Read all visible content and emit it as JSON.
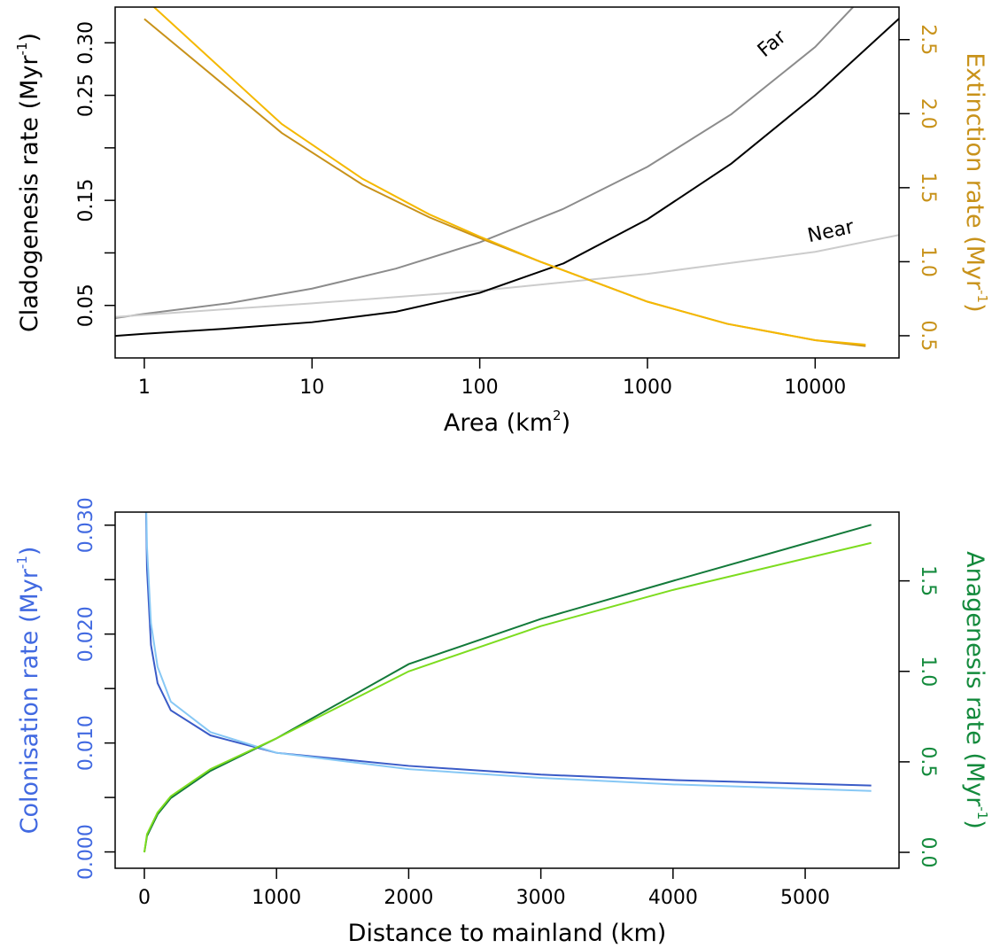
{
  "chart_data": [
    {
      "type": "line",
      "xscale": "log",
      "xlabel": [
        "Area (km",
        "2",
        ")"
      ],
      "ylabel": [
        "Cladogenesis rate (Myr",
        "-1",
        ")"
      ],
      "y2label": [
        "Extinction rate (Myr",
        "-1",
        ")"
      ],
      "ycolor": "#000000",
      "y2color": "#c8921a",
      "xlim": [
        0.67,
        31623
      ],
      "xticks": [
        1,
        10,
        100,
        1000,
        10000
      ],
      "ylim": [
        0,
        0.334
      ],
      "yticks": [
        0.05,
        0.15,
        0.25,
        {
          "value": 0.3,
          "label": "0.30"
        }
      ],
      "yminorticks": [
        0.1,
        0.2
      ],
      "y2lim": [
        0.35,
        2.72
      ],
      "y2ticks": [
        0.5,
        {
          "value": 1,
          "label": "1.0"
        },
        1.5,
        {
          "value": 2,
          "label": "2.0"
        },
        2.5
      ],
      "series": [
        {
          "name": "Far",
          "color": "#8c8c8c",
          "x": [
            0.67,
            1,
            3.16,
            10,
            31.6,
            100,
            316,
            1000,
            3162,
            10000,
            31623
          ],
          "values": [
            0.038,
            0.042,
            0.052,
            0.066,
            0.085,
            0.11,
            0.142,
            0.182,
            0.232,
            0.296,
            0.38
          ]
        },
        {
          "name": "Near",
          "color": "#cccccc",
          "x": [
            0.67,
            1,
            10,
            100,
            1000,
            10000,
            31623
          ],
          "values": [
            0.039,
            0.041,
            0.052,
            0.064,
            0.08,
            0.101,
            0.117
          ]
        },
        {
          "color": "#000000",
          "x": [
            0.67,
            1,
            3.16,
            10,
            31.6,
            100,
            316,
            1000,
            3162,
            10000,
            31623
          ],
          "values": [
            0.021,
            0.023,
            0.028,
            0.034,
            0.044,
            0.062,
            0.09,
            0.132,
            0.185,
            0.25,
            0.323
          ]
        },
        {
          "color": "#c8921a",
          "axis": "y2",
          "x": [
            1,
            6.6,
            20,
            50,
            100,
            230,
            1000,
            3000,
            10000,
            20000
          ],
          "values": [
            2.64,
            1.87,
            1.52,
            1.3,
            1.16,
            1.0,
            0.73,
            0.58,
            0.47,
            0.43
          ]
        },
        {
          "color": "#f5b800",
          "axis": "y2",
          "x": [
            1,
            6.6,
            20,
            50,
            100,
            230,
            1000,
            3000,
            10000,
            20000
          ],
          "values": [
            2.78,
            1.93,
            1.56,
            1.32,
            1.17,
            1.0,
            0.73,
            0.58,
            0.47,
            0.44
          ]
        }
      ]
    },
    {
      "type": "line",
      "xlabel": [
        "Distance to mainland (km)"
      ],
      "ylabel": [
        "Colonisation rate (Myr",
        "-1",
        ")"
      ],
      "y2label": [
        "Anagenesis rate (Myr",
        "-1",
        ")"
      ],
      "ycolor": "#4169e1",
      "y2color": "#138a3c",
      "xlim": [
        -221,
        5710
      ],
      "xticks": [
        0,
        1000,
        2000,
        3000,
        4000,
        5000
      ],
      "ylim": [
        -0.0015,
        0.0312
      ],
      "yticks": [
        {
          "value": 0,
          "label": "0.000"
        },
        {
          "value": 0.01,
          "label": "0.010"
        },
        {
          "value": 0.02,
          "label": "0.020"
        },
        {
          "value": 0.03,
          "label": "0.030"
        }
      ],
      "yminorticks": [
        0.005,
        0.015,
        0.025
      ],
      "y2lim": [
        -0.088,
        1.88
      ],
      "y2ticks": [
        {
          "value": 0,
          "label": "0.0"
        },
        0.5,
        {
          "value": 1,
          "label": "1.0"
        },
        1.5
      ],
      "series": [
        {
          "color": "#3a5bc7",
          "x": [
            1,
            20,
            50,
            100,
            200,
            500,
            1000,
            2000,
            3000,
            4000,
            5500
          ],
          "values": [
            0.04,
            0.026,
            0.019,
            0.0155,
            0.013,
            0.0107,
            0.0091,
            0.0079,
            0.0071,
            0.0066,
            0.0061
          ]
        },
        {
          "color": "#87c8f5",
          "x": [
            1,
            20,
            50,
            100,
            200,
            500,
            1000,
            2000,
            3000,
            4000,
            5500
          ],
          "values": [
            0.04,
            0.028,
            0.021,
            0.017,
            0.0138,
            0.011,
            0.0091,
            0.0076,
            0.0068,
            0.0062,
            0.0056
          ]
        },
        {
          "color": "#137a3a",
          "axis": "y2",
          "x": [
            0,
            20,
            100,
            200,
            500,
            1000,
            2000,
            3000,
            4000,
            5500
          ],
          "values": [
            0,
            0.09,
            0.21,
            0.3,
            0.45,
            0.63,
            1.04,
            1.29,
            1.5,
            1.81
          ]
        },
        {
          "color": "#7ddc1f",
          "axis": "y2",
          "x": [
            0,
            20,
            100,
            200,
            500,
            1000,
            2000,
            3000,
            4000,
            5500
          ],
          "values": [
            0,
            0.1,
            0.22,
            0.31,
            0.46,
            0.63,
            1.0,
            1.25,
            1.45,
            1.71
          ]
        }
      ]
    }
  ]
}
